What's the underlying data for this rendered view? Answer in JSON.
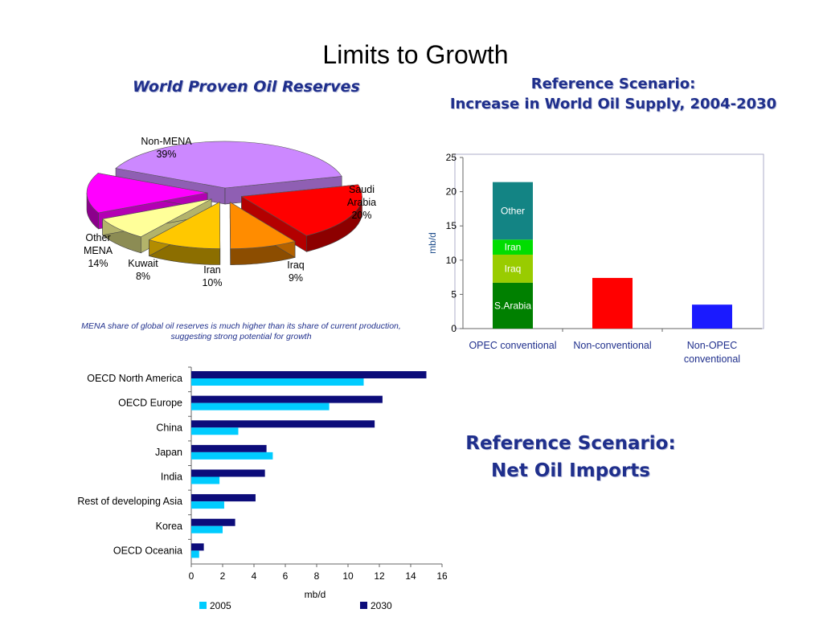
{
  "slide": {
    "title": "Limits to Growth"
  },
  "chart_data": [
    {
      "type": "pie",
      "title": "World Proven Oil Reserves",
      "caption_line1": "MENA share of global oil reserves is much higher than its share of current production,",
      "caption_line2": "suggesting strong potential for growth",
      "slices": [
        {
          "name": "Non-MENA",
          "label": "39%",
          "value": 39,
          "color": "#cc88ff"
        },
        {
          "name": "Saudi Arabia",
          "label_line1": "Saudi",
          "label_line2": "Arabia",
          "label": "20%",
          "value": 20,
          "color": "#ff0000"
        },
        {
          "name": "Iraq",
          "label": "9%",
          "value": 9,
          "color": "#ff8c00"
        },
        {
          "name": "Iran",
          "label": "10%",
          "value": 10,
          "color": "#ffc800"
        },
        {
          "name": "Kuwait",
          "label": "8%",
          "value": 8,
          "color": "#ffff99"
        },
        {
          "name": "Other MENA",
          "label_line1": "Other",
          "label_line2": "MENA",
          "label": "14%",
          "value": 14,
          "color": "#ff00ff"
        }
      ]
    },
    {
      "type": "bar",
      "stacked": true,
      "title_line1": "Reference Scenario:",
      "title_line2": "Increase in World Oil Supply, 2004-2030",
      "ylabel": "mb/d",
      "ylim": [
        0,
        25
      ],
      "yticks": [
        "0",
        "5",
        "10",
        "15",
        "20",
        "25"
      ],
      "categories": [
        {
          "line1": "OPEC conventional",
          "line2": ""
        },
        {
          "line1": "Non-conventional",
          "line2": ""
        },
        {
          "line1": "Non-OPEC",
          "line2": "conventional"
        }
      ],
      "series": [
        {
          "name": "S.Arabia",
          "values": [
            6.7,
            0,
            0
          ],
          "color": "#008000",
          "show_label": true
        },
        {
          "name": "Iraq",
          "values": [
            4.1,
            0,
            0
          ],
          "color": "#99cc00",
          "show_label": true
        },
        {
          "name": "Iran",
          "values": [
            2.2,
            0,
            0
          ],
          "color": "#00dd00",
          "show_label": true
        },
        {
          "name": "Other",
          "values": [
            8.4,
            0,
            0
          ],
          "color": "#138484",
          "show_label": true
        },
        {
          "name": "",
          "values": [
            0,
            7.4,
            0
          ],
          "color": "#ff0000",
          "show_label": false
        },
        {
          "name": "",
          "values": [
            0,
            0,
            3.5
          ],
          "color": "#1a1aff",
          "show_label": false
        }
      ],
      "colors": {
        "grid": "#dddddd",
        "frame": "#9999bb"
      }
    },
    {
      "type": "bar",
      "orientation": "horizontal",
      "title_line1": "Reference Scenario:",
      "title_line2": "Net Oil Imports",
      "xlabel": "mb/d",
      "xlim": [
        0,
        16
      ],
      "xticks": [
        "0",
        "2",
        "4",
        "6",
        "8",
        "10",
        "12",
        "14",
        "16"
      ],
      "categories": [
        "OECD North America",
        "OECD Europe",
        "China",
        "Japan",
        "India",
        "Rest of developing Asia",
        "Korea",
        "OECD Oceania"
      ],
      "series": [
        {
          "name": "2030",
          "values": [
            15.0,
            12.2,
            11.7,
            4.8,
            4.7,
            4.1,
            2.8,
            0.8
          ],
          "color": "#0c0c7a"
        },
        {
          "name": "2005",
          "values": [
            11.0,
            8.8,
            3.0,
            5.2,
            1.8,
            2.1,
            2.0,
            0.5
          ],
          "color": "#00ccff"
        }
      ],
      "legend_order": [
        "2005",
        "2030"
      ],
      "legend_position": "bottom"
    }
  ]
}
